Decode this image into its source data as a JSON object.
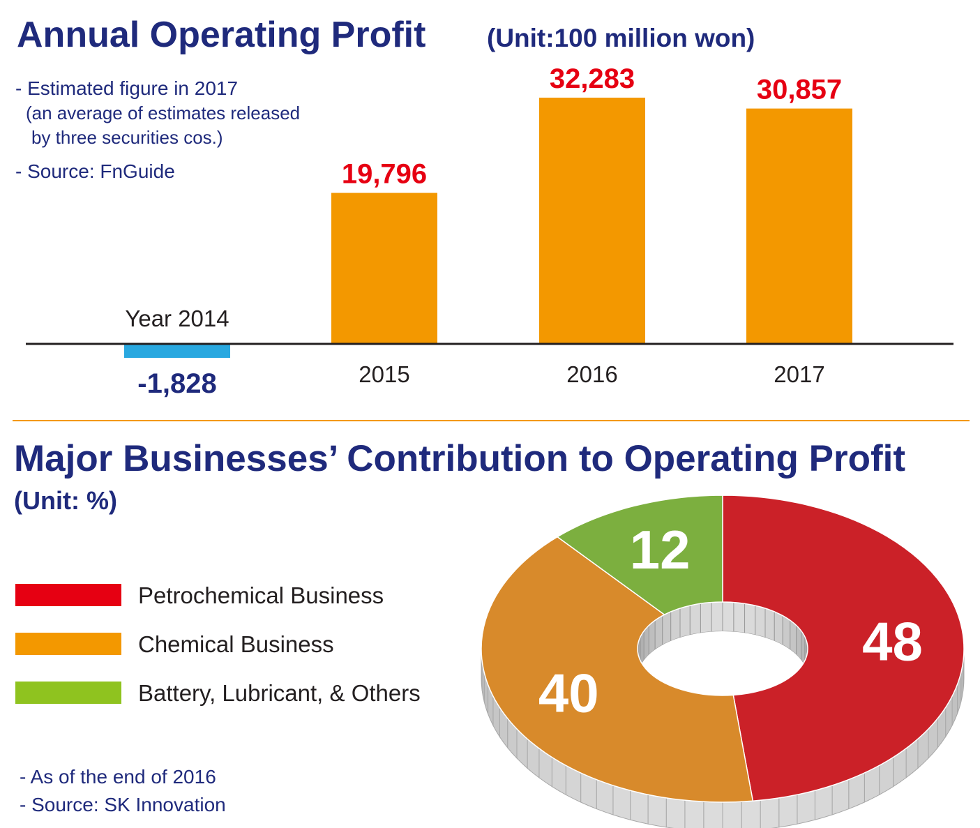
{
  "colors": {
    "title": "#1f2a7c",
    "positive_bar": "#f39800",
    "negative_bar": "#29a8e0",
    "positive_label": "#e60012",
    "negative_label": "#1f2a7c",
    "divider": "#f39800",
    "petrochemical": "#cb2128",
    "chemical": "#d88a2b",
    "others": "#7caf3f",
    "legend_petrochemical": "#e60012",
    "legend_chemical": "#f39800",
    "legend_others": "#8fc31f"
  },
  "top": {
    "title": "Annual Operating Profit",
    "unit": "(Unit:100 million won)",
    "notes": [
      "- Estimated figure in 2017",
      "(an average of estimates released",
      "by three securities cos.)",
      "- Source: FnGuide"
    ]
  },
  "bottom": {
    "title": "Major Businesses’ Contribution to Operating Profit",
    "unit": "(Unit: %)",
    "legend": [
      "Petrochemical Business",
      "Chemical Business",
      "Battery, Lubricant, & Others"
    ],
    "notes": [
      "- As of the end of 2016",
      "- Source: SK Innovation"
    ]
  },
  "chart_data": [
    {
      "type": "bar",
      "title": "Annual Operating Profit",
      "unit": "(Unit:100 million won)",
      "categories": [
        "Year 2014",
        "2015",
        "2016",
        "2017"
      ],
      "values": [
        -1828,
        19796,
        32283,
        30857
      ],
      "value_labels": [
        "-1,828",
        "19,796",
        "32,283",
        "30,857"
      ],
      "ylim": [
        -1828,
        32283
      ],
      "grid": false
    },
    {
      "type": "pie",
      "title": "Major Businesses’ Contribution to Operating Profit",
      "unit": "(Unit: %)",
      "style": "3d-donut",
      "categories": [
        "Petrochemical Business",
        "Chemical Business",
        "Battery, Lubricant, & Others"
      ],
      "values": [
        48,
        40,
        12
      ],
      "value_labels": [
        "48",
        "40",
        "12"
      ],
      "legend_position": "left"
    }
  ]
}
